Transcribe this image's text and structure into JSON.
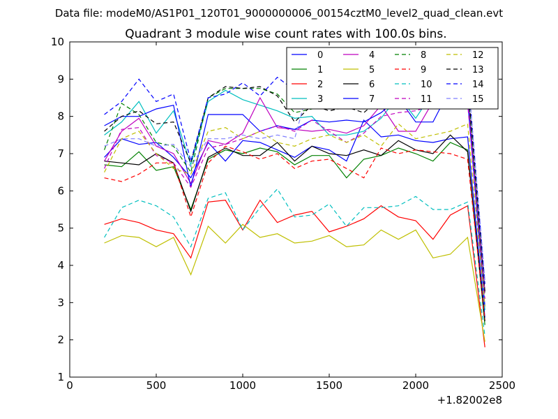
{
  "header": {
    "datafile": "Data file: modeM0/AS1P01_120T01_9000000006_00154cztM0_level2_quad_clean.evt"
  },
  "chart_data": {
    "type": "line",
    "title": "Quadrant 3 module wise count rates with 100.0s bins.",
    "xlabel": "",
    "ylabel": "",
    "xlim": [
      0,
      2500
    ],
    "ylim": [
      1,
      10
    ],
    "x_offset_label": "+1.82002e8",
    "x_ticks": [
      0,
      500,
      1000,
      1500,
      2000,
      2500
    ],
    "y_ticks": [
      1,
      2,
      3,
      4,
      5,
      6,
      7,
      8,
      9,
      10
    ],
    "legend_position": "top-right",
    "legend_columns": 4,
    "x": [
      200,
      300,
      400,
      500,
      600,
      700,
      800,
      900,
      1000,
      1100,
      1200,
      1300,
      1400,
      1500,
      1600,
      1700,
      1800,
      1900,
      2000,
      2100,
      2200,
      2300,
      2400
    ],
    "series": [
      {
        "name": "0",
        "color": "#0000ff",
        "dash": false,
        "values": [
          6.9,
          7.4,
          7.25,
          7.3,
          6.9,
          6.35,
          7.3,
          6.8,
          7.35,
          7.3,
          7.1,
          6.9,
          7.2,
          7.1,
          6.8,
          7.9,
          7.45,
          7.5,
          7.35,
          7.3,
          7.4,
          7.45,
          2.6
        ]
      },
      {
        "name": "1",
        "color": "#008000",
        "dash": false,
        "values": [
          6.7,
          6.65,
          7.05,
          6.55,
          6.65,
          5.5,
          6.85,
          7.1,
          7.0,
          7.15,
          7.05,
          6.7,
          6.95,
          6.95,
          6.35,
          6.85,
          6.95,
          7.15,
          7.0,
          6.8,
          7.3,
          7.1,
          2.4
        ]
      },
      {
        "name": "2",
        "color": "#ff0000",
        "dash": false,
        "values": [
          5.1,
          5.25,
          5.15,
          4.95,
          4.85,
          4.2,
          5.7,
          5.75,
          4.95,
          5.75,
          5.15,
          5.35,
          5.45,
          4.9,
          5.05,
          5.25,
          5.6,
          5.3,
          5.2,
          4.7,
          5.35,
          5.6,
          1.8
        ]
      },
      {
        "name": "3",
        "color": "#00bfbf",
        "dash": false,
        "values": [
          7.5,
          7.85,
          8.4,
          7.55,
          8.15,
          6.7,
          8.4,
          8.7,
          8.45,
          8.3,
          8.15,
          7.95,
          8.0,
          7.5,
          7.5,
          7.6,
          7.95,
          8.55,
          7.95,
          8.65,
          8.75,
          8.5,
          2.8
        ]
      },
      {
        "name": "4",
        "color": "#bf00bf",
        "dash": false,
        "values": [
          6.8,
          7.6,
          7.95,
          7.2,
          7.0,
          6.2,
          7.35,
          7.25,
          7.55,
          8.5,
          7.7,
          7.65,
          7.6,
          7.65,
          7.55,
          7.75,
          8.3,
          7.6,
          7.6,
          8.4,
          8.3,
          8.7,
          3.3
        ]
      },
      {
        "name": "5",
        "color": "#bfbf00",
        "dash": false,
        "values": [
          4.6,
          4.8,
          4.75,
          4.5,
          4.75,
          3.75,
          5.05,
          4.6,
          5.1,
          4.75,
          4.85,
          4.6,
          4.65,
          4.8,
          4.5,
          4.55,
          4.95,
          4.7,
          4.95,
          4.2,
          4.3,
          4.75,
          1.95
        ]
      },
      {
        "name": "6",
        "color": "#000000",
        "dash": false,
        "values": [
          6.8,
          6.75,
          6.7,
          7.0,
          6.75,
          5.45,
          6.9,
          7.15,
          6.95,
          6.95,
          7.3,
          6.8,
          7.2,
          7.0,
          6.95,
          7.1,
          6.95,
          7.35,
          7.1,
          7.0,
          7.5,
          7.05,
          2.5
        ]
      },
      {
        "name": "7",
        "color": "#0000ff",
        "dash": false,
        "values": [
          7.75,
          8.0,
          8.0,
          8.2,
          8.3,
          6.1,
          8.05,
          8.05,
          8.05,
          7.6,
          7.75,
          7.65,
          7.9,
          7.85,
          7.9,
          7.85,
          8.1,
          8.5,
          7.85,
          7.85,
          8.75,
          8.45,
          2.9
        ]
      },
      {
        "name": "8",
        "color": "#008000",
        "dash": true,
        "values": [
          7.1,
          8.35,
          8.05,
          7.3,
          7.2,
          6.5,
          8.5,
          8.75,
          8.75,
          8.75,
          8.6,
          8.1,
          8.2,
          8.45,
          8.5,
          8.55,
          8.85,
          8.6,
          8.9,
          8.75,
          8.95,
          8.85,
          3.2
        ]
      },
      {
        "name": "9",
        "color": "#ff0000",
        "dash": true,
        "values": [
          6.35,
          6.25,
          6.45,
          6.75,
          6.75,
          5.3,
          6.75,
          7.2,
          7.05,
          6.85,
          7.0,
          6.6,
          6.8,
          6.85,
          6.6,
          6.35,
          7.15,
          7.0,
          7.1,
          7.05,
          7.0,
          6.85,
          2.55
        ]
      },
      {
        "name": "10",
        "color": "#00bfbf",
        "dash": true,
        "values": [
          4.75,
          5.55,
          5.75,
          5.6,
          5.3,
          4.5,
          5.8,
          5.95,
          4.95,
          5.55,
          6.05,
          5.3,
          5.35,
          5.65,
          5.05,
          5.55,
          5.55,
          5.6,
          5.85,
          5.5,
          5.5,
          5.7,
          2.1
        ]
      },
      {
        "name": "11",
        "color": "#bf00bf",
        "dash": true,
        "values": [
          6.6,
          7.65,
          7.7,
          6.95,
          6.75,
          6.1,
          7.15,
          7.25,
          7.4,
          7.6,
          7.75,
          7.6,
          7.9,
          7.6,
          7.3,
          7.55,
          8.0,
          8.1,
          8.15,
          8.3,
          8.25,
          8.35,
          3.1
        ]
      },
      {
        "name": "12",
        "color": "#bfbf00",
        "dash": true,
        "values": [
          6.5,
          7.4,
          7.6,
          7.0,
          6.6,
          6.45,
          7.6,
          7.7,
          7.4,
          7.6,
          7.3,
          7.2,
          7.4,
          7.5,
          7.3,
          7.5,
          7.2,
          7.8,
          7.4,
          7.5,
          7.6,
          7.8,
          2.9
        ]
      },
      {
        "name": "13",
        "color": "#000000",
        "dash": true,
        "values": [
          7.6,
          8.0,
          8.15,
          7.8,
          7.85,
          6.75,
          8.5,
          8.8,
          8.75,
          8.8,
          8.55,
          7.85,
          8.3,
          8.15,
          8.25,
          8.1,
          8.5,
          8.45,
          8.6,
          8.85,
          9.05,
          8.95,
          3.3
        ]
      },
      {
        "name": "14",
        "color": "#0000ff",
        "dash": true,
        "values": [
          8.05,
          8.4,
          9.0,
          8.4,
          8.6,
          6.8,
          8.5,
          8.6,
          8.9,
          8.55,
          9.05,
          8.7,
          9.1,
          8.8,
          8.9,
          8.5,
          8.85,
          9.3,
          8.7,
          9.15,
          9.25,
          9.25,
          3.5
        ]
      },
      {
        "name": "15",
        "color": "#7f7fff",
        "dash": true,
        "values": [
          7.2,
          7.4,
          7.4,
          7.2,
          7.25,
          6.65,
          7.4,
          7.4,
          7.5,
          7.4,
          7.5,
          7.4,
          9.1,
          8.2,
          8.7,
          8.25,
          8.95,
          9.4,
          9.1,
          9.6,
          9.3,
          9.2,
          3.6
        ]
      }
    ]
  }
}
